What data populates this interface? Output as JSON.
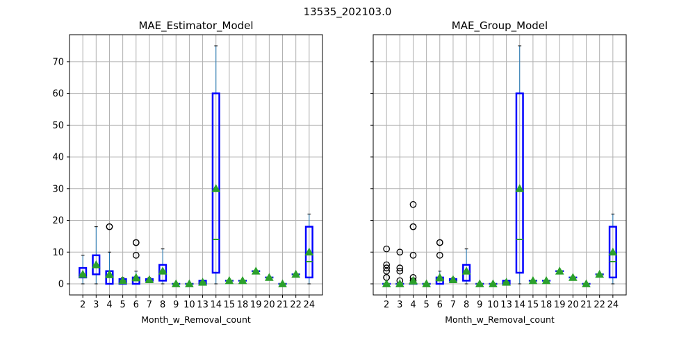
{
  "figure": {
    "suptitle": "13535_202103.0"
  },
  "chart_data": [
    {
      "type": "box",
      "title": "MAE_Estimator_Model",
      "xlabel": "Month_w_Removal_count",
      "ylabel": "",
      "ylim": [
        -3.5,
        78.5
      ],
      "yticks": [
        0,
        10,
        20,
        30,
        40,
        50,
        60,
        70
      ],
      "grid": true,
      "colors": {
        "box": "#0000ff",
        "whisker": "#1f77b4",
        "median": "#2ca02c",
        "mean": "#2ca02c",
        "grid": "#b0b0b0"
      },
      "categories": [
        "2",
        "3",
        "4",
        "5",
        "6",
        "7",
        "8",
        "9",
        "10",
        "13",
        "14",
        "15",
        "18",
        "19",
        "20",
        "21",
        "22",
        "24"
      ],
      "boxes": [
        {
          "q1": 2,
          "median": 3,
          "q3": 5,
          "whislo": 0,
          "whishi": 9,
          "mean": 3,
          "fliers": []
        },
        {
          "q1": 3,
          "median": 6,
          "q3": 9,
          "whislo": 0,
          "whishi": 18,
          "mean": 6,
          "fliers": []
        },
        {
          "q1": 0,
          "median": 2,
          "q3": 4,
          "whislo": 0,
          "whishi": 10,
          "mean": 3,
          "fliers": [
            18,
            18
          ]
        },
        {
          "q1": 0,
          "median": 1,
          "q3": 1.5,
          "whislo": 0,
          "whishi": 2,
          "mean": 1,
          "fliers": []
        },
        {
          "q1": 0,
          "median": 1,
          "q3": 2,
          "whislo": 0,
          "whishi": 4,
          "mean": 2,
          "fliers": [
            9,
            13,
            13
          ]
        },
        {
          "q1": 1,
          "median": 1,
          "q3": 1.5,
          "whislo": 1,
          "whishi": 2,
          "mean": 1.3,
          "fliers": []
        },
        {
          "q1": 1,
          "median": 4,
          "q3": 6,
          "whislo": 0,
          "whishi": 11,
          "mean": 4,
          "fliers": []
        },
        {
          "q1": 0,
          "median": 0,
          "q3": 0,
          "whislo": 0,
          "whishi": 0,
          "mean": 0,
          "fliers": []
        },
        {
          "q1": 0,
          "median": 0,
          "q3": 0,
          "whislo": 0,
          "whishi": 0,
          "mean": 0,
          "fliers": []
        },
        {
          "q1": 0,
          "median": 0.5,
          "q3": 1,
          "whislo": 0,
          "whishi": 1,
          "mean": 0.5,
          "fliers": []
        },
        {
          "q1": 3.5,
          "median": 14,
          "q3": 60,
          "whislo": 0,
          "whishi": 75,
          "mean": 30,
          "fliers": []
        },
        {
          "q1": 1,
          "median": 1,
          "q3": 1,
          "whislo": 1,
          "whishi": 1,
          "mean": 1,
          "fliers": []
        },
        {
          "q1": 1,
          "median": 1,
          "q3": 1,
          "whislo": 1,
          "whishi": 1,
          "mean": 1,
          "fliers": []
        },
        {
          "q1": 4,
          "median": 4,
          "q3": 4,
          "whislo": 4,
          "whishi": 4,
          "mean": 4,
          "fliers": []
        },
        {
          "q1": 2,
          "median": 2,
          "q3": 2,
          "whislo": 2,
          "whishi": 2,
          "mean": 2,
          "fliers": []
        },
        {
          "q1": 0,
          "median": 0,
          "q3": 0,
          "whislo": 0,
          "whishi": 0,
          "mean": 0,
          "fliers": []
        },
        {
          "q1": 3,
          "median": 3,
          "q3": 3,
          "whislo": 3,
          "whishi": 3,
          "mean": 3,
          "fliers": []
        },
        {
          "q1": 2,
          "median": 7,
          "q3": 18,
          "whislo": 0,
          "whishi": 22,
          "mean": 10,
          "fliers": []
        }
      ]
    },
    {
      "type": "box",
      "title": "MAE_Group_Model",
      "xlabel": "Month_w_Removal_count",
      "ylabel": "",
      "ylim": [
        -3.5,
        78.5
      ],
      "yticks": [
        0,
        10,
        20,
        30,
        40,
        50,
        60,
        70
      ],
      "grid": true,
      "colors": {
        "box": "#0000ff",
        "whisker": "#1f77b4",
        "median": "#2ca02c",
        "mean": "#2ca02c",
        "grid": "#b0b0b0"
      },
      "categories": [
        "2",
        "3",
        "4",
        "5",
        "6",
        "7",
        "8",
        "9",
        "10",
        "13",
        "14",
        "15",
        "18",
        "19",
        "20",
        "21",
        "22",
        "24"
      ],
      "boxes": [
        {
          "q1": 0,
          "median": 0,
          "q3": 0,
          "whislo": 0,
          "whishi": 0,
          "mean": 0,
          "fliers": [
            2,
            2,
            4,
            5,
            6,
            11
          ]
        },
        {
          "q1": 0,
          "median": 0,
          "q3": 0,
          "whislo": 0,
          "whishi": 0,
          "mean": 0,
          "fliers": [
            1,
            4,
            5,
            10
          ]
        },
        {
          "q1": 0,
          "median": 0,
          "q3": 0,
          "whislo": 0,
          "whishi": 0,
          "mean": 1,
          "fliers": [
            1,
            2,
            9,
            18,
            18,
            25
          ]
        },
        {
          "q1": 0,
          "median": 0,
          "q3": 0,
          "whislo": 0,
          "whishi": 0,
          "mean": 0,
          "fliers": []
        },
        {
          "q1": 0,
          "median": 1,
          "q3": 2,
          "whislo": 0,
          "whishi": 4,
          "mean": 2,
          "fliers": [
            9,
            13,
            13
          ]
        },
        {
          "q1": 1,
          "median": 1,
          "q3": 1.5,
          "whislo": 1,
          "whishi": 2,
          "mean": 1.3,
          "fliers": []
        },
        {
          "q1": 1,
          "median": 4,
          "q3": 6,
          "whislo": 0,
          "whishi": 11,
          "mean": 4,
          "fliers": []
        },
        {
          "q1": 0,
          "median": 0,
          "q3": 0,
          "whislo": 0,
          "whishi": 0,
          "mean": 0,
          "fliers": []
        },
        {
          "q1": 0,
          "median": 0,
          "q3": 0,
          "whislo": 0,
          "whishi": 0,
          "mean": 0,
          "fliers": []
        },
        {
          "q1": 0,
          "median": 0.5,
          "q3": 1,
          "whislo": 0,
          "whishi": 1,
          "mean": 0.5,
          "fliers": []
        },
        {
          "q1": 3.5,
          "median": 14,
          "q3": 60,
          "whislo": 0,
          "whishi": 75,
          "mean": 30,
          "fliers": []
        },
        {
          "q1": 1,
          "median": 1,
          "q3": 1,
          "whislo": 1,
          "whishi": 1,
          "mean": 1,
          "fliers": []
        },
        {
          "q1": 1,
          "median": 1,
          "q3": 1,
          "whislo": 1,
          "whishi": 1,
          "mean": 1,
          "fliers": []
        },
        {
          "q1": 4,
          "median": 4,
          "q3": 4,
          "whislo": 4,
          "whishi": 4,
          "mean": 4,
          "fliers": []
        },
        {
          "q1": 2,
          "median": 2,
          "q3": 2,
          "whislo": 2,
          "whishi": 2,
          "mean": 2,
          "fliers": []
        },
        {
          "q1": 0,
          "median": 0,
          "q3": 0,
          "whislo": 0,
          "whishi": 0,
          "mean": 0,
          "fliers": []
        },
        {
          "q1": 3,
          "median": 3,
          "q3": 3,
          "whislo": 3,
          "whishi": 3,
          "mean": 3,
          "fliers": []
        },
        {
          "q1": 2,
          "median": 7,
          "q3": 18,
          "whislo": 0,
          "whishi": 22,
          "mean": 10,
          "fliers": []
        }
      ]
    }
  ]
}
